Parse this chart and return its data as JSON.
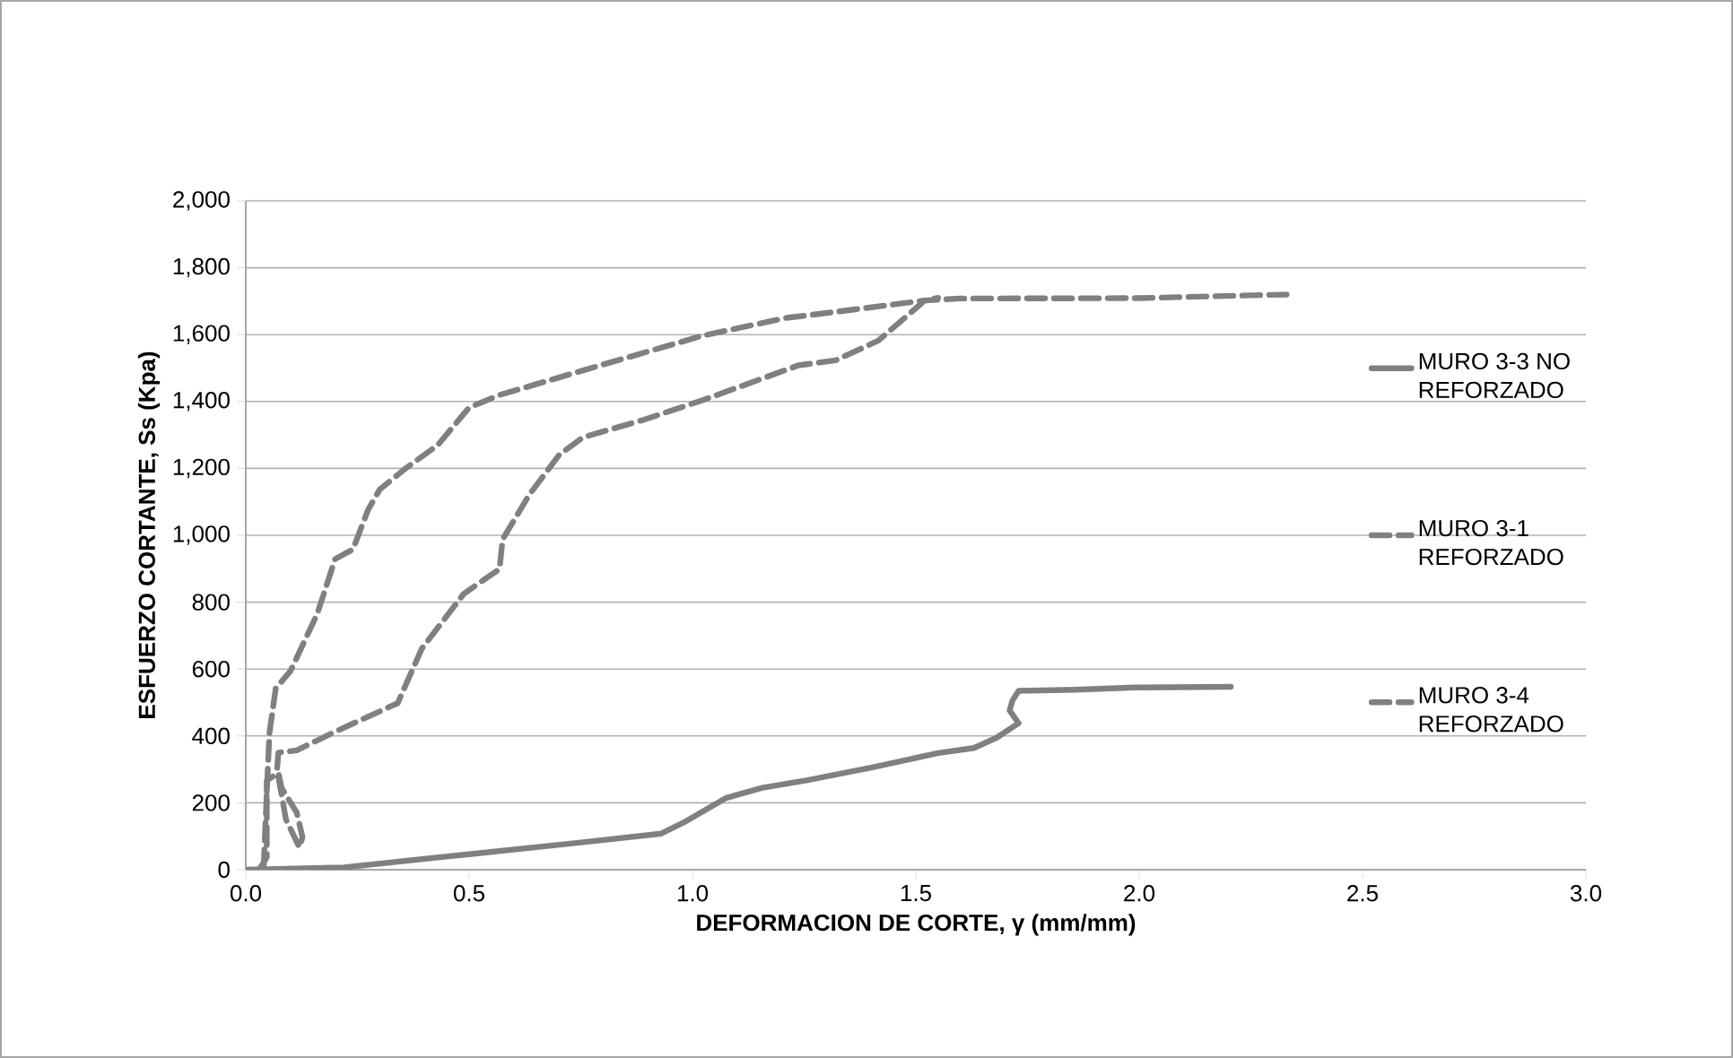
{
  "chart_data": {
    "type": "line",
    "xlabel": "DEFORMACION DE CORTE, γ (mm/mm)",
    "ylabel": "ESFUERZO CORTANTE, Ss (Kpa)",
    "xlim": [
      0,
      3
    ],
    "xticks": [
      {
        "value": 0,
        "label": "0.0"
      },
      {
        "value": 0.5,
        "label": "0.5"
      },
      {
        "value": 1,
        "label": "1.0"
      },
      {
        "value": 1.5,
        "label": "1.5"
      },
      {
        "value": 2,
        "label": "2.0"
      },
      {
        "value": 2.5,
        "label": "2.5"
      },
      {
        "value": 3,
        "label": "3.0"
      }
    ],
    "ylim": [
      0,
      2000
    ],
    "yticks": [
      {
        "value": 0,
        "label": "0"
      },
      {
        "value": 200,
        "label": "200"
      },
      {
        "value": 400,
        "label": "400"
      },
      {
        "value": 600,
        "label": "600"
      },
      {
        "value": 800,
        "label": "800"
      },
      {
        "value": 1000,
        "label": "1,000"
      },
      {
        "value": 1200,
        "label": "1,200"
      },
      {
        "value": 1400,
        "label": "1,400"
      },
      {
        "value": 1600,
        "label": "1,600"
      },
      {
        "value": 1800,
        "label": "1,800"
      },
      {
        "value": 2000,
        "label": "2,000"
      }
    ],
    "grid": "y",
    "legend": "right",
    "marker": "none",
    "series": [
      {
        "name": "MURO 3-3 NO REFORZADO",
        "color": "#808080",
        "line_style": "solid",
        "x": [
          0,
          0.22,
          0.49,
          0.755,
          0.93,
          0.98,
          1.076,
          1.156,
          1.255,
          1.4,
          1.55,
          1.63,
          1.68,
          1.73,
          1.71,
          1.716,
          1.73,
          1.857,
          1.99,
          2.205
        ],
        "values": [
          0,
          7,
          45,
          82,
          108,
          141,
          215,
          245,
          267,
          305,
          349,
          364,
          394,
          438,
          476,
          505,
          535,
          538,
          545,
          547
        ]
      },
      {
        "name": "MURO 3-1 REFORZADO",
        "color": "#808080",
        "line_style": "dashed",
        "x": [
          0.04,
          0.047,
          0.053,
          0.067,
          0.1,
          0.16,
          0.2,
          0.24,
          0.274,
          0.3,
          0.354,
          0.43,
          0.5,
          0.567,
          0.755,
          1.023,
          1.21,
          1.255,
          1.52,
          1.6,
          2.0,
          2.33
        ],
        "values": [
          7,
          230,
          409,
          542,
          594,
          765,
          929,
          958,
          1077,
          1137,
          1196,
          1270,
          1382,
          1419,
          1493,
          1597,
          1650,
          1657,
          1702,
          1708,
          1709,
          1720
        ]
      },
      {
        "name": "MURO 3-4 REFORZADO",
        "color": "#808080",
        "line_style": "dashed",
        "x": [
          0.03,
          0.047,
          0.047,
          0.073,
          0.08,
          0.114,
          0.127,
          0.12,
          0.09,
          0.07,
          0.073,
          0.114,
          0.194,
          0.34,
          0.394,
          0.488,
          0.568,
          0.575,
          0.635,
          0.702,
          0.755,
          0.89,
          1.023,
          1.237,
          1.32,
          1.416,
          1.52,
          1.55
        ],
        "values": [
          0,
          37,
          267,
          290,
          245,
          171,
          97,
          67,
          150,
          300,
          350,
          357,
          409,
          498,
          661,
          825,
          899,
          988,
          1122,
          1241,
          1293,
          1345,
          1404,
          1508,
          1523,
          1582,
          1702,
          1710
        ]
      }
    ]
  }
}
